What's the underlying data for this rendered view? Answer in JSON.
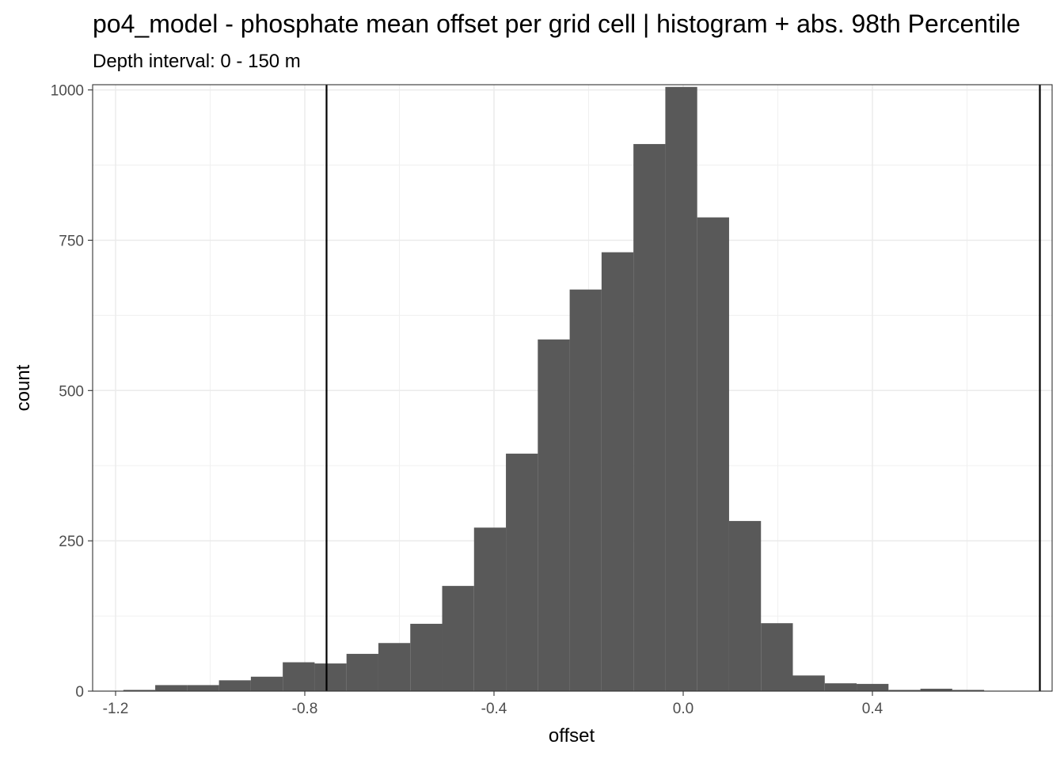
{
  "chart_data": {
    "type": "histogram",
    "title": "po4_model  -  phosphate mean offset per grid cell | histogram + abs. 98th Percentile",
    "subtitle": "Depth interval: 0 - 150 m",
    "xlabel": "offset",
    "ylabel": "count",
    "xlim": [
      -1.25,
      0.77
    ],
    "ylim": [
      0,
      1000
    ],
    "x_ticks": [
      -1.2,
      -0.8,
      -0.4,
      0.0,
      0.4
    ],
    "x_tick_labels": [
      "-1.2",
      "-0.8",
      "-0.4",
      "0.0",
      "0.4"
    ],
    "y_ticks": [
      0,
      250,
      500,
      750,
      1000
    ],
    "y_tick_labels": [
      "0",
      "250",
      "500",
      "750",
      "1000"
    ],
    "bin_width": 0.0674,
    "bin_starts": [
      -1.1836,
      -1.1162,
      -1.0488,
      -0.9814,
      -0.914,
      -0.8466,
      -0.7792,
      -0.7118,
      -0.6444,
      -0.577,
      -0.5096,
      -0.4422,
      -0.3748,
      -0.3074,
      -0.24,
      -0.1726,
      -0.1052,
      -0.0378,
      0.0296,
      0.097,
      0.1644,
      0.2318,
      0.2992,
      0.3666,
      0.434,
      0.5014,
      0.5688,
      0.6362
    ],
    "counts": [
      2,
      10,
      10,
      18,
      24,
      48,
      46,
      62,
      80,
      112,
      175,
      272,
      395,
      585,
      668,
      730,
      910,
      1005,
      788,
      283,
      113,
      26,
      13,
      12,
      2,
      4,
      2,
      0
    ],
    "vlines": [
      -0.754,
      0.754
    ],
    "bar_color": "#595959",
    "vline_color": "#000000",
    "grid": true
  }
}
